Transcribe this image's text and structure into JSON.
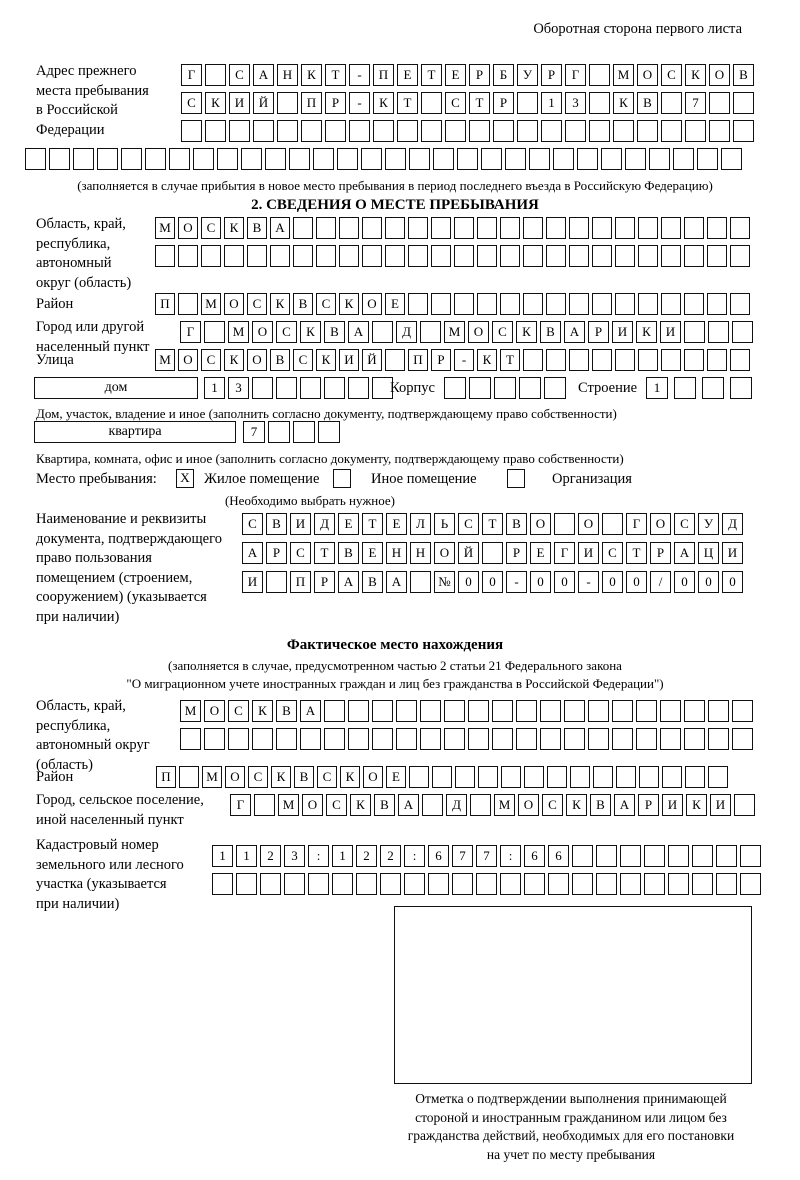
{
  "page": {
    "header_note": "Оборотная сторона первого листа"
  },
  "prev_address": {
    "label_lines": [
      "Адрес прежнего",
      "места пребывания",
      "в Российской",
      "Федерации"
    ],
    "rows": [
      {
        "cells": "Г САНКТ-ПЕТЕРБУРГ МОСКОВ",
        "count": 24
      },
      {
        "cells": "СКИЙ ПР-КТ СТР 13 КВ 7",
        "count": 24
      },
      {
        "cells": "",
        "count": 24
      },
      {
        "cells": "",
        "count": 30
      }
    ],
    "note": "(заполняется в случае прибытия в новое место пребывания в период последнего въезда в Российскую Федерацию)"
  },
  "section2": {
    "title": "2. СВЕДЕНИЯ О МЕСТЕ ПРЕБЫВАНИЯ",
    "region": {
      "label_lines": [
        "Область, край,",
        "республика,",
        "автономный",
        "округ (область)"
      ],
      "rows": [
        {
          "cells": "МОСКВА",
          "count": 26
        },
        {
          "cells": "",
          "count": 26
        }
      ]
    },
    "district": {
      "label": "Район",
      "row": {
        "cells": "П МОСКВСКОЕ",
        "count": 26
      }
    },
    "city": {
      "label_lines": [
        "Город или другой",
        "населенный пункт"
      ],
      "row": {
        "cells": "Г МОСКВА Д МОСКВАРИКИ",
        "count": 24
      }
    },
    "street": {
      "label": "Улица",
      "row": {
        "cells": "МОСКОВСКИЙ ПР-КТ",
        "count": 26
      }
    },
    "house": {
      "type_label": "дом",
      "number": {
        "cells": "13",
        "count": 8
      },
      "korpus_label": "Корпус",
      "korpus": {
        "cells": "",
        "count": 5
      },
      "stroenie_label": "Строение",
      "stroenie": {
        "cells": "1",
        "count": 4
      },
      "note": "Дом, участок, владение и иное (заполнить согласно документу, подтверждающему право собственности)"
    },
    "apartment": {
      "type_label": "квартира",
      "number": {
        "cells": "7",
        "count": 4
      },
      "note": "Квартира, комната, офис и иное (заполнить согласно документу, подтверждающему право собственности)"
    },
    "stay_type": {
      "label": "Место пребывания:",
      "options": [
        {
          "label": "Жилое помещение",
          "mark": "X"
        },
        {
          "label": "Иное помещение",
          "mark": ""
        },
        {
          "label": "Организация",
          "mark": ""
        }
      ],
      "note": "(Необходимо выбрать нужное)"
    },
    "document": {
      "label_lines": [
        "Наименование и реквизиты",
        "документа, подтверждающего",
        "право пользования",
        "помещением (строением,",
        "сооружением) (указывается",
        "при наличии)"
      ],
      "rows": [
        {
          "cells": "СВИДЕТЕЛЬСТВО О ГОСУД",
          "count": 21
        },
        {
          "cells": "АРСТВЕННОЙ РЕГИСТРАЦИ",
          "count": 21
        },
        {
          "cells": "И ПРАВА №00-00-00/000",
          "count": 21
        }
      ]
    }
  },
  "actual_location": {
    "title": "Фактическое место нахождения",
    "note_lines": [
      "(заполняется в случае, предусмотренном частью 2 статьи 21 Федерального закона",
      "\"О миграционном учете иностранных граждан и лиц без гражданства в Российской Федерации\")"
    ],
    "region": {
      "label_lines": [
        "Область, край,",
        "республика,",
        "автономный округ",
        "(область)"
      ],
      "rows": [
        {
          "cells": "МОСКВА",
          "count": 24
        },
        {
          "cells": "",
          "count": 24
        }
      ]
    },
    "district": {
      "label": "Район",
      "row": {
        "cells": "П МОСКВСКОЕ",
        "count": 25
      }
    },
    "city": {
      "label_lines": [
        "Город, сельское поселение,",
        "иной населенный пункт"
      ],
      "row": {
        "cells": "Г МОСКВА Д МОСКВАРИКИ",
        "count": 22
      }
    },
    "cadastral": {
      "label_lines": [
        "Кадастровый номер",
        "земельного или лесного",
        "участка (указывается",
        "при наличии)"
      ],
      "rows": [
        {
          "cells": "1123:122:677:66",
          "count": 23
        },
        {
          "cells": "",
          "count": 23
        }
      ]
    },
    "stamp_note_lines": [
      "Отметка о подтверждении выполнения принимающей",
      "стороной и иностранным гражданином или лицом без",
      "гражданства действий, необходимых для его постановки",
      "на учет по месту пребывания"
    ]
  }
}
